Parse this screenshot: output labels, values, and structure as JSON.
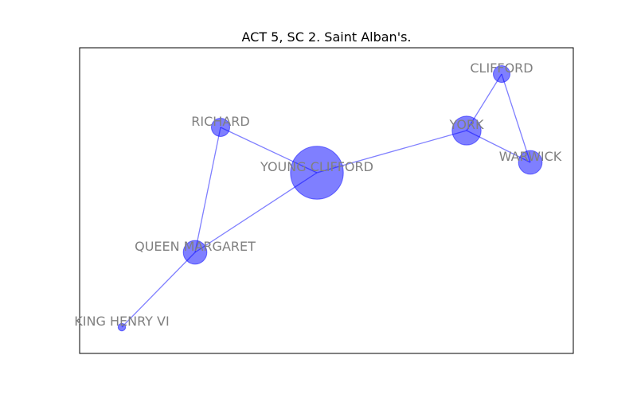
{
  "title": "ACT 5, SC 2. Saint Alban's.",
  "colors": {
    "node": "#0000ff",
    "edge": "#0000ff",
    "label": "#808080",
    "frame": "#000000"
  },
  "nodes": [
    {
      "id": "young-clifford",
      "label": "YOUNG CLIFFORD",
      "weight": 10
    },
    {
      "id": "york",
      "label": "YORK",
      "weight": 3
    },
    {
      "id": "clifford",
      "label": "CLIFFORD",
      "weight": 1
    },
    {
      "id": "warwick",
      "label": "WARWICK",
      "weight": 2
    },
    {
      "id": "richard",
      "label": "RICHARD",
      "weight": 1.2
    },
    {
      "id": "queen-margaret",
      "label": "QUEEN MARGARET",
      "weight": 2
    },
    {
      "id": "king-henry-vi",
      "label": "KING HENRY VI",
      "weight": 0.2
    }
  ],
  "edges": [
    {
      "source": "richard",
      "target": "young-clifford"
    },
    {
      "source": "richard",
      "target": "queen-margaret"
    },
    {
      "source": "young-clifford",
      "target": "york"
    },
    {
      "source": "young-clifford",
      "target": "queen-margaret"
    },
    {
      "source": "queen-margaret",
      "target": "king-henry-vi"
    },
    {
      "source": "york",
      "target": "clifford"
    },
    {
      "source": "york",
      "target": "warwick"
    },
    {
      "source": "clifford",
      "target": "warwick"
    }
  ]
}
